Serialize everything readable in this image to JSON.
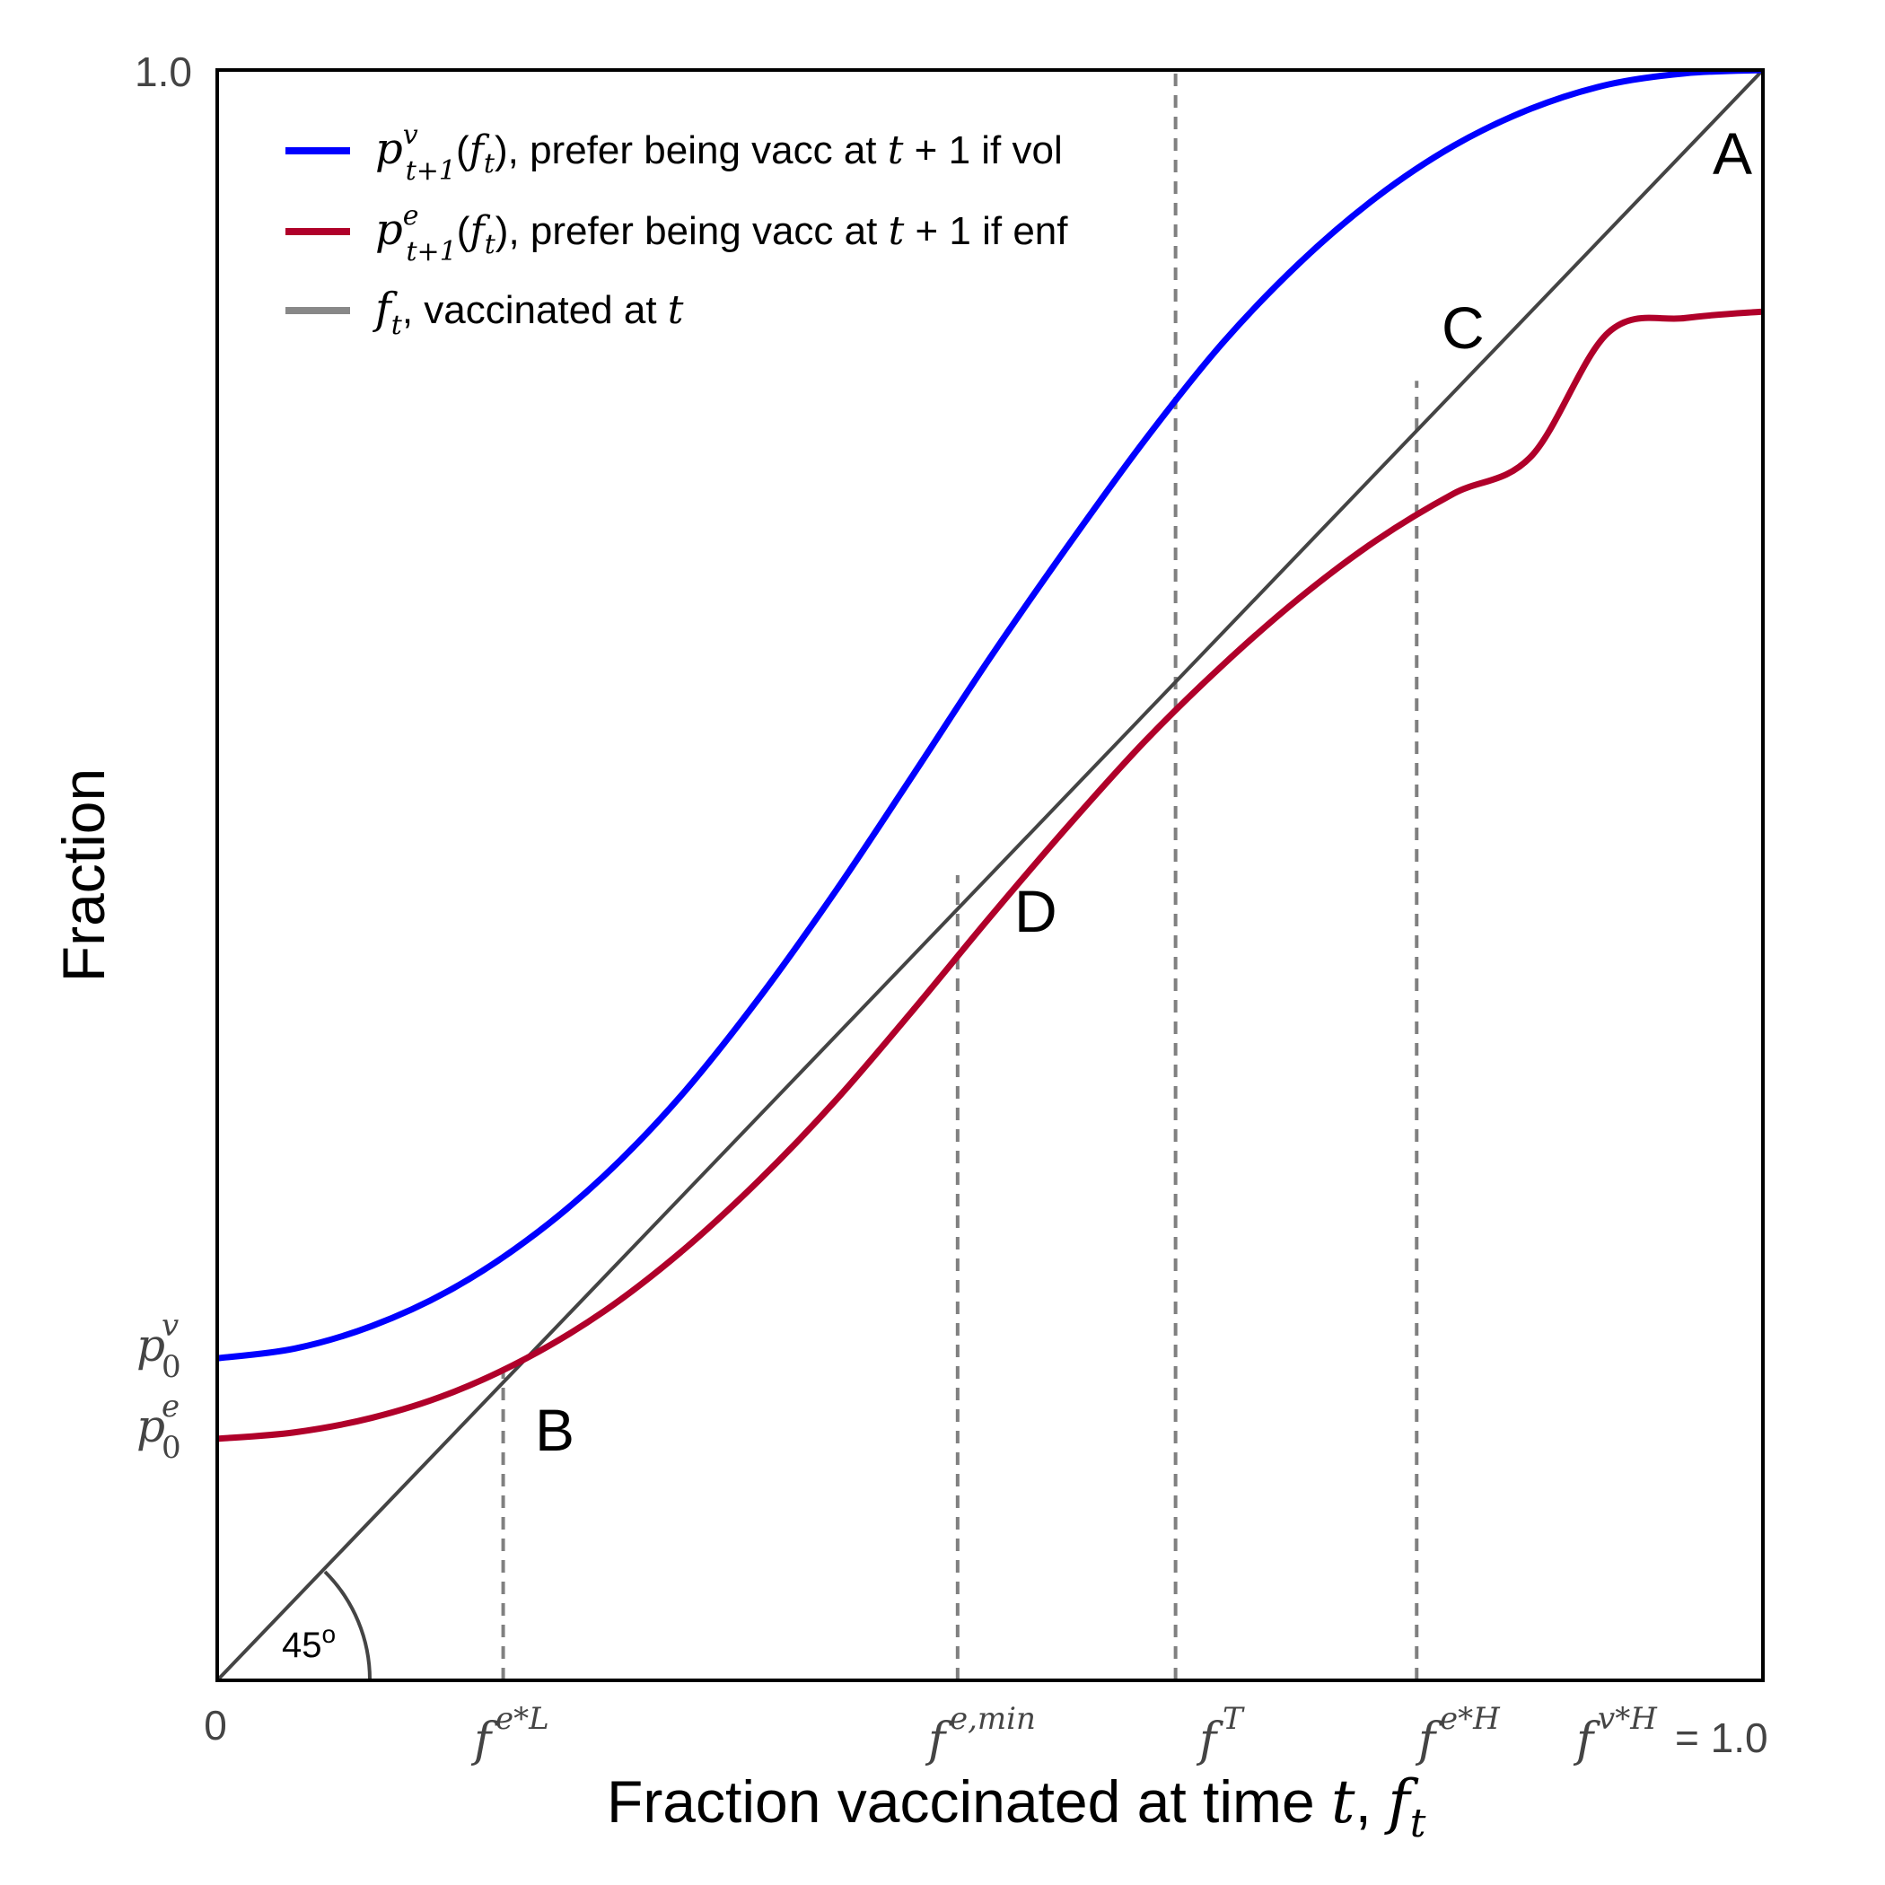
{
  "chart_data": {
    "type": "line",
    "title": "",
    "xlabel": "Fraction vaccinated at time t, f_t",
    "ylabel": "Fraction",
    "xlim": [
      0,
      1.0
    ],
    "ylim": [
      0,
      1.0
    ],
    "grid": false,
    "legend_position": "top-left",
    "x_ticks": [
      {
        "x": 0,
        "label": "0"
      },
      {
        "x": 0.185,
        "label": "f^{e*L}"
      },
      {
        "x": 0.479,
        "label": "f^{e,min}"
      },
      {
        "x": 0.62,
        "label": "f^T"
      },
      {
        "x": 0.776,
        "label": "f^{e*H}"
      },
      {
        "x": 1.0,
        "label": "f^{v*H} = 1.0"
      }
    ],
    "y_ticks": [
      {
        "y": 1.0,
        "label": "1.0"
      },
      {
        "y": 0.2,
        "label": "p_0^v"
      },
      {
        "y": 0.15,
        "label": "p_0^e"
      }
    ],
    "series": [
      {
        "name": "p^v_{t+1}(f_t), prefer being vacc at t + 1 if vol",
        "color": "#0000ff",
        "x": [
          0,
          0.05,
          0.1,
          0.15,
          0.2,
          0.25,
          0.3,
          0.35,
          0.4,
          0.45,
          0.5,
          0.55,
          0.6,
          0.65,
          0.7,
          0.75,
          0.8,
          0.85,
          0.9,
          0.95,
          1.0
        ],
        "y": [
          0.2,
          0.206,
          0.22,
          0.242,
          0.273,
          0.313,
          0.363,
          0.423,
          0.49,
          0.562,
          0.635,
          0.704,
          0.77,
          0.83,
          0.88,
          0.921,
          0.953,
          0.976,
          0.991,
          0.998,
          1.0
        ]
      },
      {
        "name": "p^e_{t+1}(f_t), prefer being vacc at t + 1 if enf",
        "color": "#b0002a",
        "x": [
          0,
          0.05,
          0.1,
          0.15,
          0.2,
          0.25,
          0.3,
          0.35,
          0.4,
          0.45,
          0.5,
          0.55,
          0.6,
          0.65,
          0.7,
          0.75,
          0.8,
          0.85,
          0.9,
          0.95,
          1.0
        ],
        "y": [
          0.15,
          0.154,
          0.163,
          0.178,
          0.2,
          0.229,
          0.266,
          0.31,
          0.36,
          0.416,
          0.474,
          0.53,
          0.583,
          0.63,
          0.672,
          0.708,
          0.737,
          0.76,
          0.837,
          0.846,
          0.85
        ]
      },
      {
        "name": "f_t, vaccinated at t",
        "color": "#444444",
        "x": [
          0,
          1.0
        ],
        "y": [
          0,
          1.0
        ]
      }
    ],
    "reference_lines": [
      {
        "x": 0.185,
        "y_top": 0.193
      },
      {
        "x": 0.479,
        "y_top": 0.5
      },
      {
        "x": 0.62,
        "y_top": 1.0
      },
      {
        "x": 0.776,
        "y_top": 0.807
      }
    ],
    "annotations": [
      {
        "label": "A",
        "x": 1.0,
        "y": 1.0
      },
      {
        "label": "B",
        "x": 0.185,
        "y": 0.193
      },
      {
        "label": "C",
        "x": 0.776,
        "y": 0.807
      },
      {
        "label": "D",
        "x": 0.479,
        "y": 0.5
      },
      {
        "label": "45°",
        "x": 0.05,
        "y": 0.02
      }
    ]
  }
}
